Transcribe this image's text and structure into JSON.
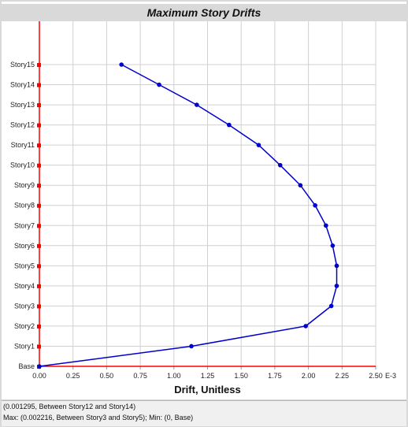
{
  "chart_data": {
    "type": "line",
    "title": "Maximum Story Drifts",
    "xlabel": "Drift, Unitless",
    "ylabel": "",
    "x_unit_suffix": "E-3",
    "xlim": [
      0,
      2.5
    ],
    "xticks": [
      "0.00",
      "0.25",
      "0.50",
      "0.75",
      "1.00",
      "1.25",
      "1.50",
      "1.75",
      "2.00",
      "2.25",
      "2.50"
    ],
    "categories": [
      "Base",
      "Story1",
      "Story2",
      "Story3",
      "Story4",
      "Story5",
      "Story6",
      "Story7",
      "Story8",
      "Story9",
      "Story10",
      "Story11",
      "Story12",
      "Story13",
      "Story14",
      "Story15"
    ],
    "series": [
      {
        "color": "#0000cc",
        "values": [
          0,
          1.13,
          1.98,
          2.17,
          2.21,
          2.21,
          2.18,
          2.13,
          2.05,
          1.94,
          1.79,
          1.63,
          1.41,
          1.17,
          0.89,
          0.61
        ]
      }
    ],
    "grid": true,
    "axis_color": "#ff0000"
  },
  "status": {
    "line1": "(0.001295, Between Story12 and Story14)",
    "line2": "Max: (0.002216, Between Story3 and Story5);   Min: (0, Base)"
  }
}
